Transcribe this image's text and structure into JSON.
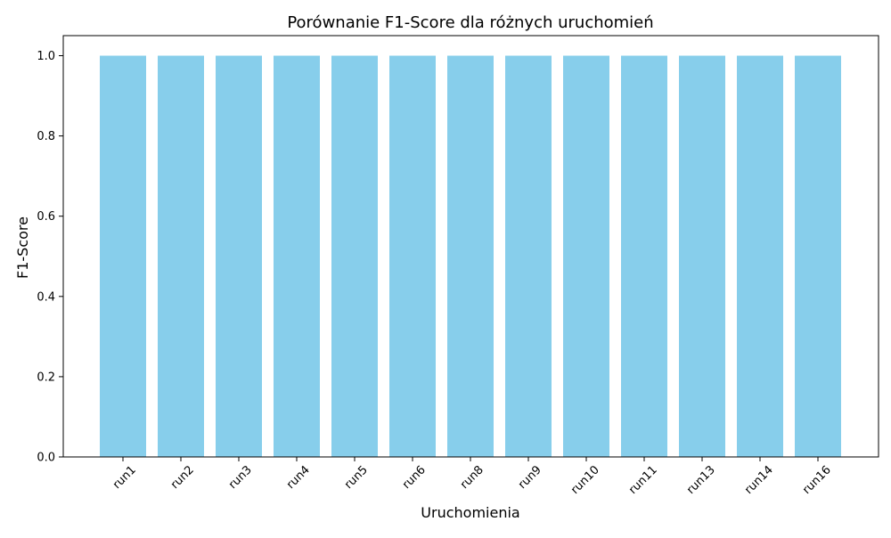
{
  "chart_data": {
    "type": "bar",
    "title": "Porównanie F1-Score dla różnych uruchomień",
    "xlabel": "Uruchomienia",
    "ylabel": "F1-Score",
    "categories": [
      "run1",
      "run2",
      "run3",
      "run4",
      "run5",
      "run6",
      "run8",
      "run9",
      "run10",
      "run11",
      "run13",
      "run14",
      "run16"
    ],
    "values": [
      1.0,
      1.0,
      1.0,
      1.0,
      1.0,
      1.0,
      1.0,
      1.0,
      1.0,
      1.0,
      1.0,
      1.0,
      1.0
    ],
    "ylim": [
      0,
      1.05
    ],
    "yticks": [
      "0.0",
      "0.2",
      "0.4",
      "0.6",
      "0.8",
      "1.0"
    ],
    "bar_color": "#87ceeb",
    "grid": false,
    "legend": "none"
  }
}
